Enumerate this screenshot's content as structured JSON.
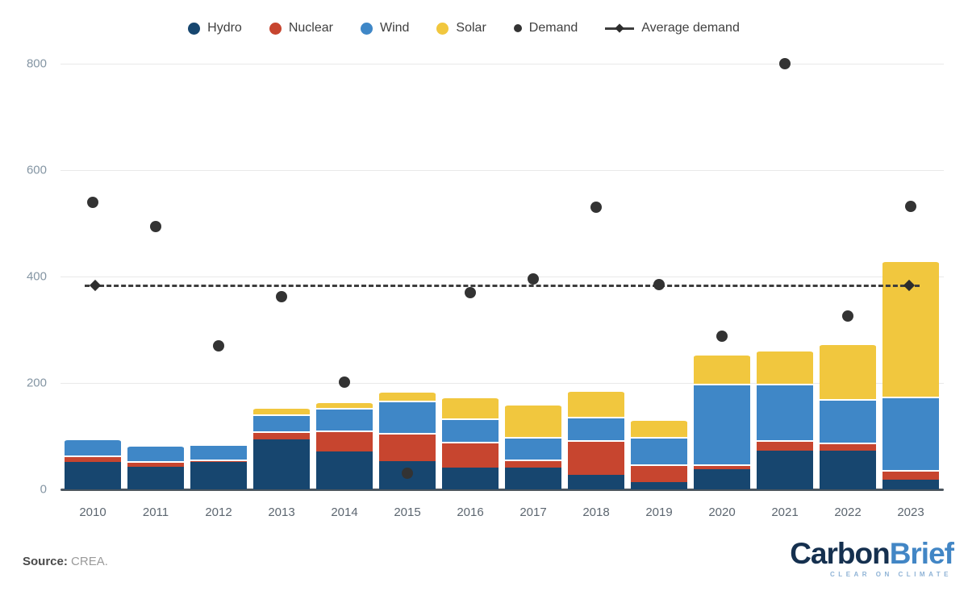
{
  "legend": [
    {
      "label": "Hydro",
      "color": "#17466f",
      "marker": "circle"
    },
    {
      "label": "Nuclear",
      "color": "#c7452f",
      "marker": "circle"
    },
    {
      "label": "Wind",
      "color": "#3f87c7",
      "marker": "circle"
    },
    {
      "label": "Solar",
      "color": "#f1c73e",
      "marker": "circle"
    },
    {
      "label": "Demand",
      "color": "#333333",
      "marker": "dot"
    },
    {
      "label": "Average demand",
      "color": "#3d3d3d",
      "marker": "line-diamond"
    }
  ],
  "chart_data": {
    "type": "bar",
    "subtype": "stacked-bars-with-demand-scatter-and-average-line",
    "categories": [
      "2010",
      "2011",
      "2012",
      "2013",
      "2014",
      "2015",
      "2016",
      "2017",
      "2018",
      "2019",
      "2020",
      "2021",
      "2022",
      "2023"
    ],
    "series": [
      {
        "name": "Hydro",
        "color": "#17466f",
        "values": [
          52,
          42,
          52,
          94,
          71,
          53,
          41,
          41,
          28,
          14,
          38,
          73,
          73,
          18
        ]
      },
      {
        "name": "Nuclear",
        "color": "#c7452f",
        "values": [
          12,
          11,
          4,
          15,
          39,
          53,
          48,
          15,
          65,
          33,
          9,
          19,
          15,
          18
        ]
      },
      {
        "name": "Wind",
        "color": "#3f87c7",
        "values": [
          32,
          30,
          29,
          32,
          43,
          61,
          44,
          43,
          43,
          52,
          152,
          107,
          82,
          138
        ]
      },
      {
        "name": "Solar",
        "color": "#f1c73e",
        "values": [
          0,
          0,
          1,
          14,
          12,
          18,
          42,
          62,
          50,
          33,
          55,
          63,
          105,
          256
        ]
      }
    ],
    "scatter": {
      "name": "Demand",
      "color": "#333333",
      "values": [
        540,
        494,
        270,
        362,
        202,
        30,
        370,
        395,
        530,
        385,
        288,
        800,
        326,
        532
      ]
    },
    "average_line": {
      "name": "Average demand",
      "value": 383,
      "style": "dashed",
      "color": "#3d3d3d"
    },
    "title": "",
    "xlabel": "",
    "ylabel": "",
    "ylim": [
      0,
      800
    ],
    "yticks": [
      0,
      200,
      400,
      600,
      800
    ],
    "grid": "horizontal",
    "legend_position": "top"
  },
  "footer": {
    "source_label": "Source:",
    "source_value": " CREA.",
    "logo_primary": "Carbon",
    "logo_secondary": "Brief",
    "logo_tagline": "CLEAR ON CLIMATE"
  }
}
